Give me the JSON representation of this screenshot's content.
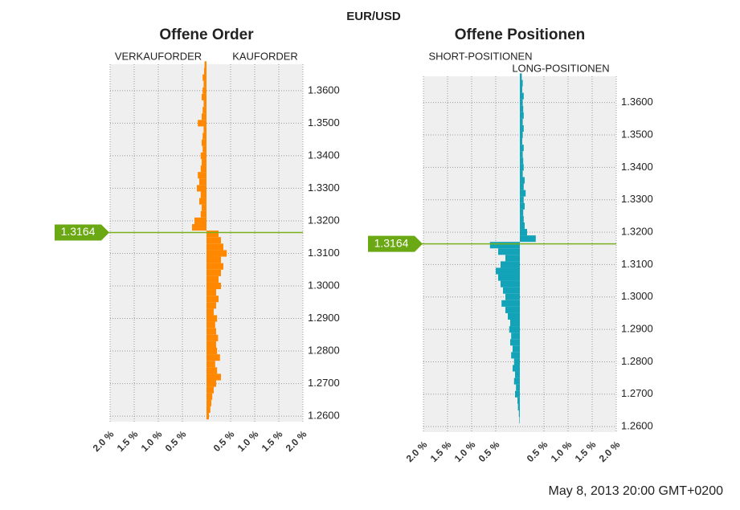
{
  "title": "EUR/USD",
  "footer": "May 8, 2013 20:00 GMT+0200",
  "chart_data": [
    {
      "type": "bar",
      "orientation": "horizontal",
      "title": "Offene Order",
      "levels": [
        1.26,
        1.262,
        1.264,
        1.266,
        1.268,
        1.27,
        1.272,
        1.274,
        1.276,
        1.278,
        1.28,
        1.282,
        1.284,
        1.286,
        1.288,
        1.29,
        1.292,
        1.294,
        1.296,
        1.298,
        1.3,
        1.302,
        1.304,
        1.306,
        1.308,
        1.31,
        1.312,
        1.314,
        1.316,
        1.318,
        1.32,
        1.322,
        1.324,
        1.326,
        1.328,
        1.33,
        1.332,
        1.334,
        1.336,
        1.338,
        1.34,
        1.342,
        1.344,
        1.346,
        1.348,
        1.35,
        1.352,
        1.354,
        1.356,
        1.358,
        1.36,
        1.362,
        1.364,
        1.366,
        1.368
      ],
      "series": [
        {
          "name": "VERKAUFORDER",
          "side": "left",
          "color": "#ff8800",
          "values": [
            0,
            0,
            0,
            0,
            0,
            0,
            0,
            0,
            0,
            0,
            0,
            0,
            0,
            0,
            0,
            0,
            0,
            0,
            0,
            0,
            0,
            0,
            0,
            0,
            0,
            0,
            0,
            0,
            0,
            0.3,
            0.25,
            0.12,
            0.1,
            0.15,
            0.12,
            0.2,
            0.15,
            0.18,
            0.12,
            0.1,
            0.12,
            0.08,
            0.1,
            0.08,
            0.06,
            0.18,
            0.1,
            0.08,
            0.06,
            0.1,
            0.08,
            0.06,
            0.08,
            0.05,
            0.04
          ]
        },
        {
          "name": "KAUFORDER",
          "side": "right",
          "color": "#ff8800",
          "values": [
            0.05,
            0.08,
            0.1,
            0.12,
            0.15,
            0.2,
            0.3,
            0.22,
            0.18,
            0.28,
            0.22,
            0.2,
            0.24,
            0.2,
            0.18,
            0.22,
            0.15,
            0.2,
            0.25,
            0.2,
            0.3,
            0.25,
            0.3,
            0.35,
            0.3,
            0.42,
            0.35,
            0.3,
            0.25,
            0,
            0,
            0,
            0,
            0,
            0,
            0,
            0,
            0,
            0,
            0,
            0,
            0,
            0,
            0,
            0,
            0,
            0,
            0,
            0,
            0,
            0,
            0,
            0,
            0,
            0
          ]
        }
      ],
      "xlim": [
        0,
        2
      ],
      "xticks": [
        {
          "value": 0.5,
          "label": "0.5 %"
        },
        {
          "value": 1,
          "label": "1.0 %"
        },
        {
          "value": 1.5,
          "label": "1.5 %"
        },
        {
          "value": 2,
          "label": "2.0 %"
        }
      ],
      "ylim": [
        1.2583,
        1.3681
      ],
      "yticks": [
        {
          "value": 1.26,
          "label": "1.2600"
        },
        {
          "value": 1.27,
          "label": "1.2700"
        },
        {
          "value": 1.28,
          "label": "1.2800"
        },
        {
          "value": 1.29,
          "label": "1.2900"
        },
        {
          "value": 1.3,
          "label": "1.3000"
        },
        {
          "value": 1.31,
          "label": "1.3100"
        },
        {
          "value": 1.32,
          "label": "1.3200"
        },
        {
          "value": 1.33,
          "label": "1.3300"
        },
        {
          "value": 1.34,
          "label": "1.3400"
        },
        {
          "value": 1.35,
          "label": "1.3500"
        },
        {
          "value": 1.36,
          "label": "1.3600"
        }
      ],
      "price": {
        "value": 1.3164,
        "label": "1.3164"
      },
      "grid": true
    },
    {
      "type": "bar",
      "orientation": "horizontal",
      "title": "Offene Positionen",
      "levels": [
        1.26,
        1.262,
        1.264,
        1.266,
        1.268,
        1.27,
        1.272,
        1.274,
        1.276,
        1.278,
        1.28,
        1.282,
        1.284,
        1.286,
        1.288,
        1.29,
        1.292,
        1.294,
        1.296,
        1.298,
        1.3,
        1.302,
        1.304,
        1.306,
        1.308,
        1.31,
        1.312,
        1.314,
        1.316,
        1.318,
        1.32,
        1.322,
        1.324,
        1.326,
        1.328,
        1.33,
        1.332,
        1.334,
        1.336,
        1.338,
        1.34,
        1.342,
        1.344,
        1.346,
        1.348,
        1.35,
        1.352,
        1.354,
        1.356,
        1.358,
        1.36,
        1.362,
        1.364,
        1.366,
        1.368
      ],
      "series": [
        {
          "name": "SHORT-POSITIONEN",
          "side": "left",
          "color": "#13a3b8",
          "values": [
            0,
            0.01,
            0.02,
            0.04,
            0.05,
            0.1,
            0.08,
            0.12,
            0.1,
            0.15,
            0.12,
            0.18,
            0.15,
            0.2,
            0.18,
            0.22,
            0.2,
            0.25,
            0.3,
            0.38,
            0.3,
            0.35,
            0.4,
            0.45,
            0.5,
            0.4,
            0.3,
            0.45,
            0.62,
            0,
            0,
            0,
            0,
            0,
            0,
            0,
            0,
            0,
            0,
            0,
            0,
            0,
            0,
            0,
            0,
            0,
            0,
            0,
            0,
            0,
            0,
            0,
            0,
            0,
            0
          ]
        },
        {
          "name": "LONG-POSITIONEN",
          "side": "right",
          "color": "#13a3b8",
          "values": [
            0,
            0,
            0,
            0,
            0,
            0,
            0,
            0,
            0,
            0,
            0,
            0,
            0,
            0,
            0,
            0,
            0,
            0,
            0,
            0,
            0,
            0,
            0,
            0,
            0,
            0,
            0,
            0,
            0,
            0.33,
            0.15,
            0.1,
            0.08,
            0.07,
            0.1,
            0.08,
            0.12,
            0.08,
            0.1,
            0.06,
            0.08,
            0.07,
            0.06,
            0.08,
            0.05,
            0.06,
            0.08,
            0.06,
            0.08,
            0.07,
            0.06,
            0.08,
            0.05,
            0.06,
            0.04
          ]
        }
      ],
      "xlim": [
        0,
        2
      ],
      "xticks": [
        {
          "value": 0.5,
          "label": "0.5 %"
        },
        {
          "value": 1,
          "label": "1.0 %"
        },
        {
          "value": 1.5,
          "label": "1.5 %"
        },
        {
          "value": 2,
          "label": "2.0 %"
        }
      ],
      "ylim": [
        1.2583,
        1.3681
      ],
      "yticks": [
        {
          "value": 1.26,
          "label": "1.2600"
        },
        {
          "value": 1.27,
          "label": "1.2700"
        },
        {
          "value": 1.28,
          "label": "1.2800"
        },
        {
          "value": 1.29,
          "label": "1.2900"
        },
        {
          "value": 1.3,
          "label": "1.3000"
        },
        {
          "value": 1.31,
          "label": "1.3100"
        },
        {
          "value": 1.32,
          "label": "1.3200"
        },
        {
          "value": 1.33,
          "label": "1.3300"
        },
        {
          "value": 1.34,
          "label": "1.3400"
        },
        {
          "value": 1.35,
          "label": "1.3500"
        },
        {
          "value": 1.36,
          "label": "1.3600"
        }
      ],
      "price": {
        "value": 1.3164,
        "label": "1.3164"
      },
      "grid": true
    }
  ]
}
